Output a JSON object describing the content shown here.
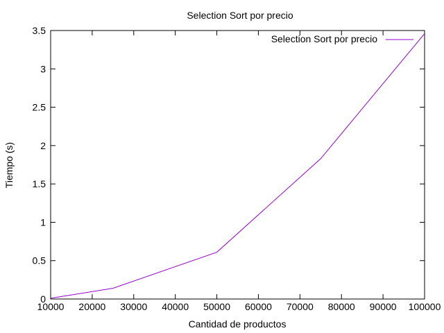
{
  "chart_data": {
    "type": "line",
    "title": "Selection Sort por precio",
    "xlabel": "Cantidad de productos",
    "ylabel": "Tiempo (s)",
    "xlim": [
      10000,
      100000
    ],
    "ylim": [
      0,
      3.5
    ],
    "xticks": [
      10000,
      20000,
      30000,
      40000,
      50000,
      60000,
      70000,
      80000,
      90000,
      100000
    ],
    "xtick_labels": [
      "10000",
      "20000",
      "30000",
      "40000",
      "50000",
      "60000",
      "70000",
      "80000",
      "90000",
      "100000"
    ],
    "yticks": [
      0,
      0.5,
      1,
      1.5,
      2,
      2.5,
      3,
      3.5
    ],
    "ytick_labels": [
      "0",
      "0.5",
      "1",
      "1.5",
      "2",
      "2.5",
      "3",
      "3.5"
    ],
    "grid": false,
    "legend_position": "top-right",
    "series": [
      {
        "name": "Selection Sort por precio",
        "color": "#9400d3",
        "x": [
          10000,
          25000,
          50000,
          75000,
          100000
        ],
        "y": [
          0.01,
          0.14,
          0.61,
          1.83,
          3.46
        ]
      }
    ]
  }
}
